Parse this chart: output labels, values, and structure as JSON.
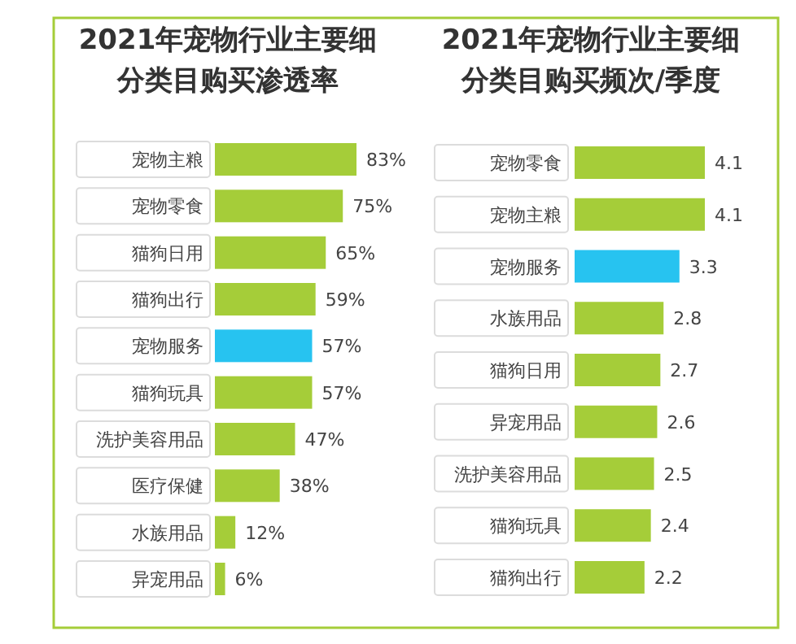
{
  "chart_data": [
    {
      "type": "bar",
      "orientation": "horizontal",
      "title": "2021年宠物行业主要细分类目购买渗透率",
      "categories": [
        "宠物主粮",
        "宠物零食",
        "猫狗日用",
        "猫狗出行",
        "宠物服务",
        "猫狗玩具",
        "洗护美容用品",
        "医疗保健",
        "水族用品",
        "异宠用品"
      ],
      "values": [
        83,
        75,
        65,
        59,
        57,
        57,
        47,
        38,
        12,
        6
      ],
      "colors": [
        "#a5cd39",
        "#a5cd39",
        "#a5cd39",
        "#a5cd39",
        "#27c3f0",
        "#a5cd39",
        "#a5cd39",
        "#a5cd39",
        "#a5cd39",
        "#a5cd39"
      ],
      "value_labels": [
        "83%",
        "75%",
        "65%",
        "59%",
        "57%",
        "57%",
        "47%",
        "38%",
        "12%",
        "6%"
      ]
    },
    {
      "type": "bar",
      "orientation": "horizontal",
      "title": "2021年宠物行业主要细分类目购买频次/季度",
      "categories": [
        "宠物零食",
        "宠物主粮",
        "宠物服务",
        "水族用品",
        "猫狗日用",
        "异宠用品",
        "洗护美容用品",
        "猫狗玩具",
        "猫狗出行"
      ],
      "values": [
        4.1,
        4.1,
        3.3,
        2.8,
        2.7,
        2.6,
        2.5,
        2.4,
        2.2
      ],
      "colors": [
        "#a5cd39",
        "#a5cd39",
        "#27c3f0",
        "#a5cd39",
        "#a5cd39",
        "#a5cd39",
        "#a5cd39",
        "#a5cd39",
        "#a5cd39"
      ],
      "data_labels": true
    }
  ]
}
